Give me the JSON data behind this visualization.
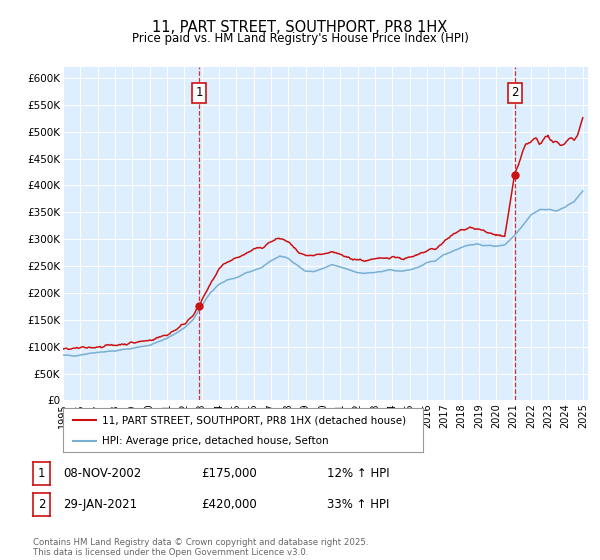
{
  "title": "11, PART STREET, SOUTHPORT, PR8 1HX",
  "subtitle": "Price paid vs. HM Land Registry's House Price Index (HPI)",
  "title_fontsize": 10.5,
  "subtitle_fontsize": 8.5,
  "background_color": "#ffffff",
  "plot_bg_color": "#ddeeff",
  "grid_color": "#ffffff",
  "hpi_color": "#7aafd4",
  "price_color": "#cc1111",
  "marker_color": "#cc1111",
  "ylim": [
    0,
    620000
  ],
  "yticks": [
    0,
    50000,
    100000,
    150000,
    200000,
    250000,
    300000,
    350000,
    400000,
    450000,
    500000,
    550000,
    600000
  ],
  "ytick_labels": [
    "£0",
    "£50K",
    "£100K",
    "£150K",
    "£200K",
    "£250K",
    "£300K",
    "£350K",
    "£400K",
    "£450K",
    "£500K",
    "£550K",
    "£600K"
  ],
  "annotation1": {
    "label": "1",
    "date_str": "08-NOV-2002",
    "price": 175000,
    "price_str": "£175,000",
    "hpi_pct": "12%",
    "x_year": 2002.85
  },
  "annotation2": {
    "label": "2",
    "date_str": "29-JAN-2021",
    "price": 420000,
    "price_str": "£420,000",
    "hpi_pct": "33%",
    "x_year": 2021.07
  },
  "legend_label_price": "11, PART STREET, SOUTHPORT, PR8 1HX (detached house)",
  "legend_label_hpi": "HPI: Average price, detached house, Sefton",
  "footnote": "Contains HM Land Registry data © Crown copyright and database right 2025.\nThis data is licensed under the Open Government Licence v3.0.",
  "xtick_years": [
    1995,
    1996,
    1997,
    1998,
    1999,
    2000,
    2001,
    2002,
    2003,
    2004,
    2005,
    2006,
    2007,
    2008,
    2009,
    2010,
    2011,
    2012,
    2013,
    2014,
    2015,
    2016,
    2017,
    2018,
    2019,
    2020,
    2021,
    2022,
    2023,
    2024,
    2025
  ]
}
